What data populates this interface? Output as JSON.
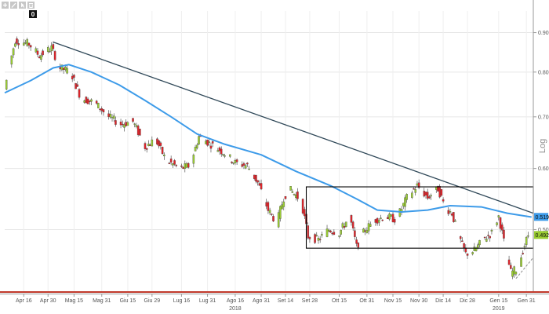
{
  "toolbar": {
    "icons": [
      "plus-icon",
      "pencil-icon",
      "pointer-icon",
      "trash-icon"
    ],
    "counter": "0"
  },
  "chart_data": {
    "type": "candlestick",
    "scale": "log",
    "y_axis_label": "Log",
    "ylim": [
      0.415,
      0.96
    ],
    "y_ticks": [
      "0.90",
      "0.80",
      "0.70",
      "0.60",
      "0.50"
    ],
    "y_tick_values": [
      0.9,
      0.8,
      0.7,
      0.6,
      0.5
    ],
    "x_ticks": [
      {
        "label": "Apr 16",
        "date": "2018-04-16"
      },
      {
        "label": "Apr 30",
        "date": "2018-04-30"
      },
      {
        "label": "Mag 15",
        "date": "2018-05-15"
      },
      {
        "label": "Mag 31",
        "date": "2018-05-31"
      },
      {
        "label": "Giu 15",
        "date": "2018-06-15"
      },
      {
        "label": "Giu 29",
        "date": "2018-06-29"
      },
      {
        "label": "Lug 16",
        "date": "2018-07-16"
      },
      {
        "label": "Lug 31",
        "date": "2018-07-31"
      },
      {
        "label": "Ago 16",
        "date": "2018-08-16"
      },
      {
        "label": "Ago 31",
        "date": "2018-08-31"
      },
      {
        "label": "Set 14",
        "date": "2018-09-14"
      },
      {
        "label": "Set 28",
        "date": "2018-09-28"
      },
      {
        "label": "Ott 15",
        "date": "2018-10-15"
      },
      {
        "label": "Ott 31",
        "date": "2018-10-31"
      },
      {
        "label": "Nov 15",
        "date": "2018-11-15"
      },
      {
        "label": "Nov 30",
        "date": "2018-11-30"
      },
      {
        "label": "Dic 14",
        "date": "2018-12-14"
      },
      {
        "label": "Dic 28",
        "date": "2018-12-28"
      },
      {
        "label": "Gen 15",
        "date": "2019-01-15"
      },
      {
        "label": "Gen 31",
        "date": "2019-01-31"
      }
    ],
    "year_labels": [
      {
        "label": "2018",
        "date": "2018-08-16"
      },
      {
        "label": "2019",
        "date": "2019-01-15"
      }
    ],
    "x_range": [
      "2018-04-05",
      "2019-02-04"
    ],
    "up_color": "#9acd32",
    "down_color": "#e0242a",
    "ma_color": "#3d9be9",
    "trendline_color": "#2f4858",
    "price_path": [
      [
        "2018-04-06",
        0.76
      ],
      [
        "2018-04-12",
        0.88
      ],
      [
        "2018-04-20",
        0.87
      ],
      [
        "2018-04-26",
        0.84
      ],
      [
        "2018-05-03",
        0.86
      ],
      [
        "2018-05-08",
        0.81
      ],
      [
        "2018-05-14",
        0.8
      ],
      [
        "2018-05-20",
        0.74
      ],
      [
        "2018-05-28",
        0.73
      ],
      [
        "2018-06-05",
        0.7
      ],
      [
        "2018-06-12",
        0.685
      ],
      [
        "2018-06-19",
        0.69
      ],
      [
        "2018-06-26",
        0.64
      ],
      [
        "2018-07-02",
        0.655
      ],
      [
        "2018-07-08",
        0.615
      ],
      [
        "2018-07-16",
        0.6
      ],
      [
        "2018-07-22",
        0.605
      ],
      [
        "2018-07-27",
        0.66
      ],
      [
        "2018-08-03",
        0.645
      ],
      [
        "2018-08-10",
        0.63
      ],
      [
        "2018-08-17",
        0.61
      ],
      [
        "2018-08-24",
        0.605
      ],
      [
        "2018-08-30",
        0.575
      ],
      [
        "2018-09-05",
        0.53
      ],
      [
        "2018-09-10",
        0.51
      ],
      [
        "2018-09-14",
        0.55
      ],
      [
        "2018-09-17",
        0.565
      ],
      [
        "2018-09-24",
        0.545
      ],
      [
        "2018-09-28",
        0.49
      ],
      [
        "2018-10-04",
        0.485
      ],
      [
        "2018-10-10",
        0.5
      ],
      [
        "2018-10-16",
        0.495
      ],
      [
        "2018-10-22",
        0.52
      ],
      [
        "2018-10-26",
        0.475
      ],
      [
        "2018-10-31",
        0.5
      ],
      [
        "2018-11-06",
        0.515
      ],
      [
        "2018-11-12",
        0.52
      ],
      [
        "2018-11-18",
        0.515
      ],
      [
        "2018-11-24",
        0.55
      ],
      [
        "2018-11-30",
        0.57
      ],
      [
        "2018-12-06",
        0.55
      ],
      [
        "2018-12-12",
        0.565
      ],
      [
        "2018-12-16",
        0.535
      ],
      [
        "2018-12-20",
        0.525
      ],
      [
        "2018-12-24",
        0.49
      ],
      [
        "2018-12-28",
        0.465
      ],
      [
        "2019-01-02",
        0.47
      ],
      [
        "2019-01-07",
        0.485
      ],
      [
        "2019-01-12",
        0.495
      ],
      [
        "2019-01-16",
        0.52
      ],
      [
        "2019-01-20",
        0.47
      ],
      [
        "2019-01-23",
        0.44
      ],
      [
        "2019-01-27",
        0.445
      ],
      [
        "2019-01-30",
        0.47
      ],
      [
        "2019-02-02",
        0.492
      ]
    ],
    "moving_average": [
      [
        "2018-04-05",
        0.752
      ],
      [
        "2018-04-20",
        0.78
      ],
      [
        "2018-05-03",
        0.81
      ],
      [
        "2018-05-12",
        0.818
      ],
      [
        "2018-05-25",
        0.8
      ],
      [
        "2018-06-10",
        0.77
      ],
      [
        "2018-06-25",
        0.735
      ],
      [
        "2018-07-10",
        0.7
      ],
      [
        "2018-07-25",
        0.665
      ],
      [
        "2018-08-10",
        0.645
      ],
      [
        "2018-08-31",
        0.625
      ],
      [
        "2018-09-20",
        0.595
      ],
      [
        "2018-10-10",
        0.57
      ],
      [
        "2018-10-25",
        0.548
      ],
      [
        "2018-11-06",
        0.53
      ],
      [
        "2018-11-20",
        0.527
      ],
      [
        "2018-12-05",
        0.53
      ],
      [
        "2018-12-18",
        0.537
      ],
      [
        "2019-01-05",
        0.535
      ],
      [
        "2019-01-20",
        0.525
      ],
      [
        "2019-02-03",
        0.519
      ]
    ],
    "trendline": {
      "from": [
        "2018-05-03",
        0.875
      ],
      "to": [
        "2019-02-04",
        0.525
      ]
    },
    "channel": {
      "from": "2018-09-26",
      "to": "2019-02-04",
      "top": 0.568,
      "bottom": 0.473
    },
    "support_line": {
      "from": [
        "2019-01-25",
        0.432
      ],
      "to": [
        "2019-02-04",
        0.46
      ]
    },
    "tags": [
      {
        "label": "0.5193",
        "value": 0.5193,
        "color": "#3d9be9"
      },
      {
        "label": "0.492",
        "value": 0.492,
        "color": "#9acd32"
      }
    ]
  }
}
